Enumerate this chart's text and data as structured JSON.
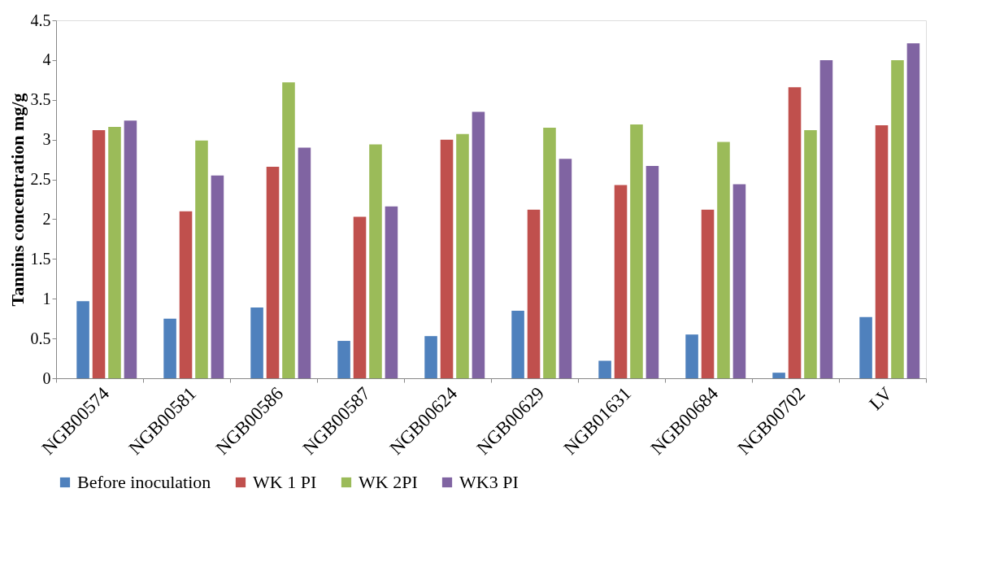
{
  "chart_data": {
    "type": "bar",
    "ylabel": "Tannins concentration mg/g",
    "categories": [
      "NGB00574",
      "NGB00581",
      "NGB00586",
      "NGB00587",
      "NGB00624",
      "NGB00629",
      "NGB01631",
      "NGB00684",
      "NGB00702",
      "LV"
    ],
    "series": [
      {
        "name": "Before inoculation",
        "color": "#4f81bd",
        "values": [
          0.97,
          0.75,
          0.89,
          0.47,
          0.53,
          0.85,
          0.22,
          0.55,
          0.07,
          0.77
        ]
      },
      {
        "name": "WK 1 PI",
        "color": "#c0504d",
        "values": [
          3.12,
          2.1,
          2.66,
          2.03,
          3.0,
          2.12,
          2.43,
          2.12,
          3.66,
          3.18
        ]
      },
      {
        "name": "WK 2PI",
        "color": "#9bbb59",
        "values": [
          3.16,
          2.99,
          3.72,
          2.94,
          3.07,
          3.15,
          3.19,
          2.97,
          3.12,
          4.0
        ]
      },
      {
        "name": "WK3 PI",
        "color": "#8064a2",
        "values": [
          3.24,
          2.55,
          2.9,
          2.16,
          3.35,
          2.76,
          2.67,
          2.44,
          4.0,
          4.21
        ]
      }
    ],
    "ylim": [
      0,
      4.5
    ],
    "yticks": [
      0,
      0.5,
      1,
      1.5,
      2,
      2.5,
      3,
      3.5,
      4,
      4.5
    ],
    "grid": false,
    "legend": "bottom"
  }
}
